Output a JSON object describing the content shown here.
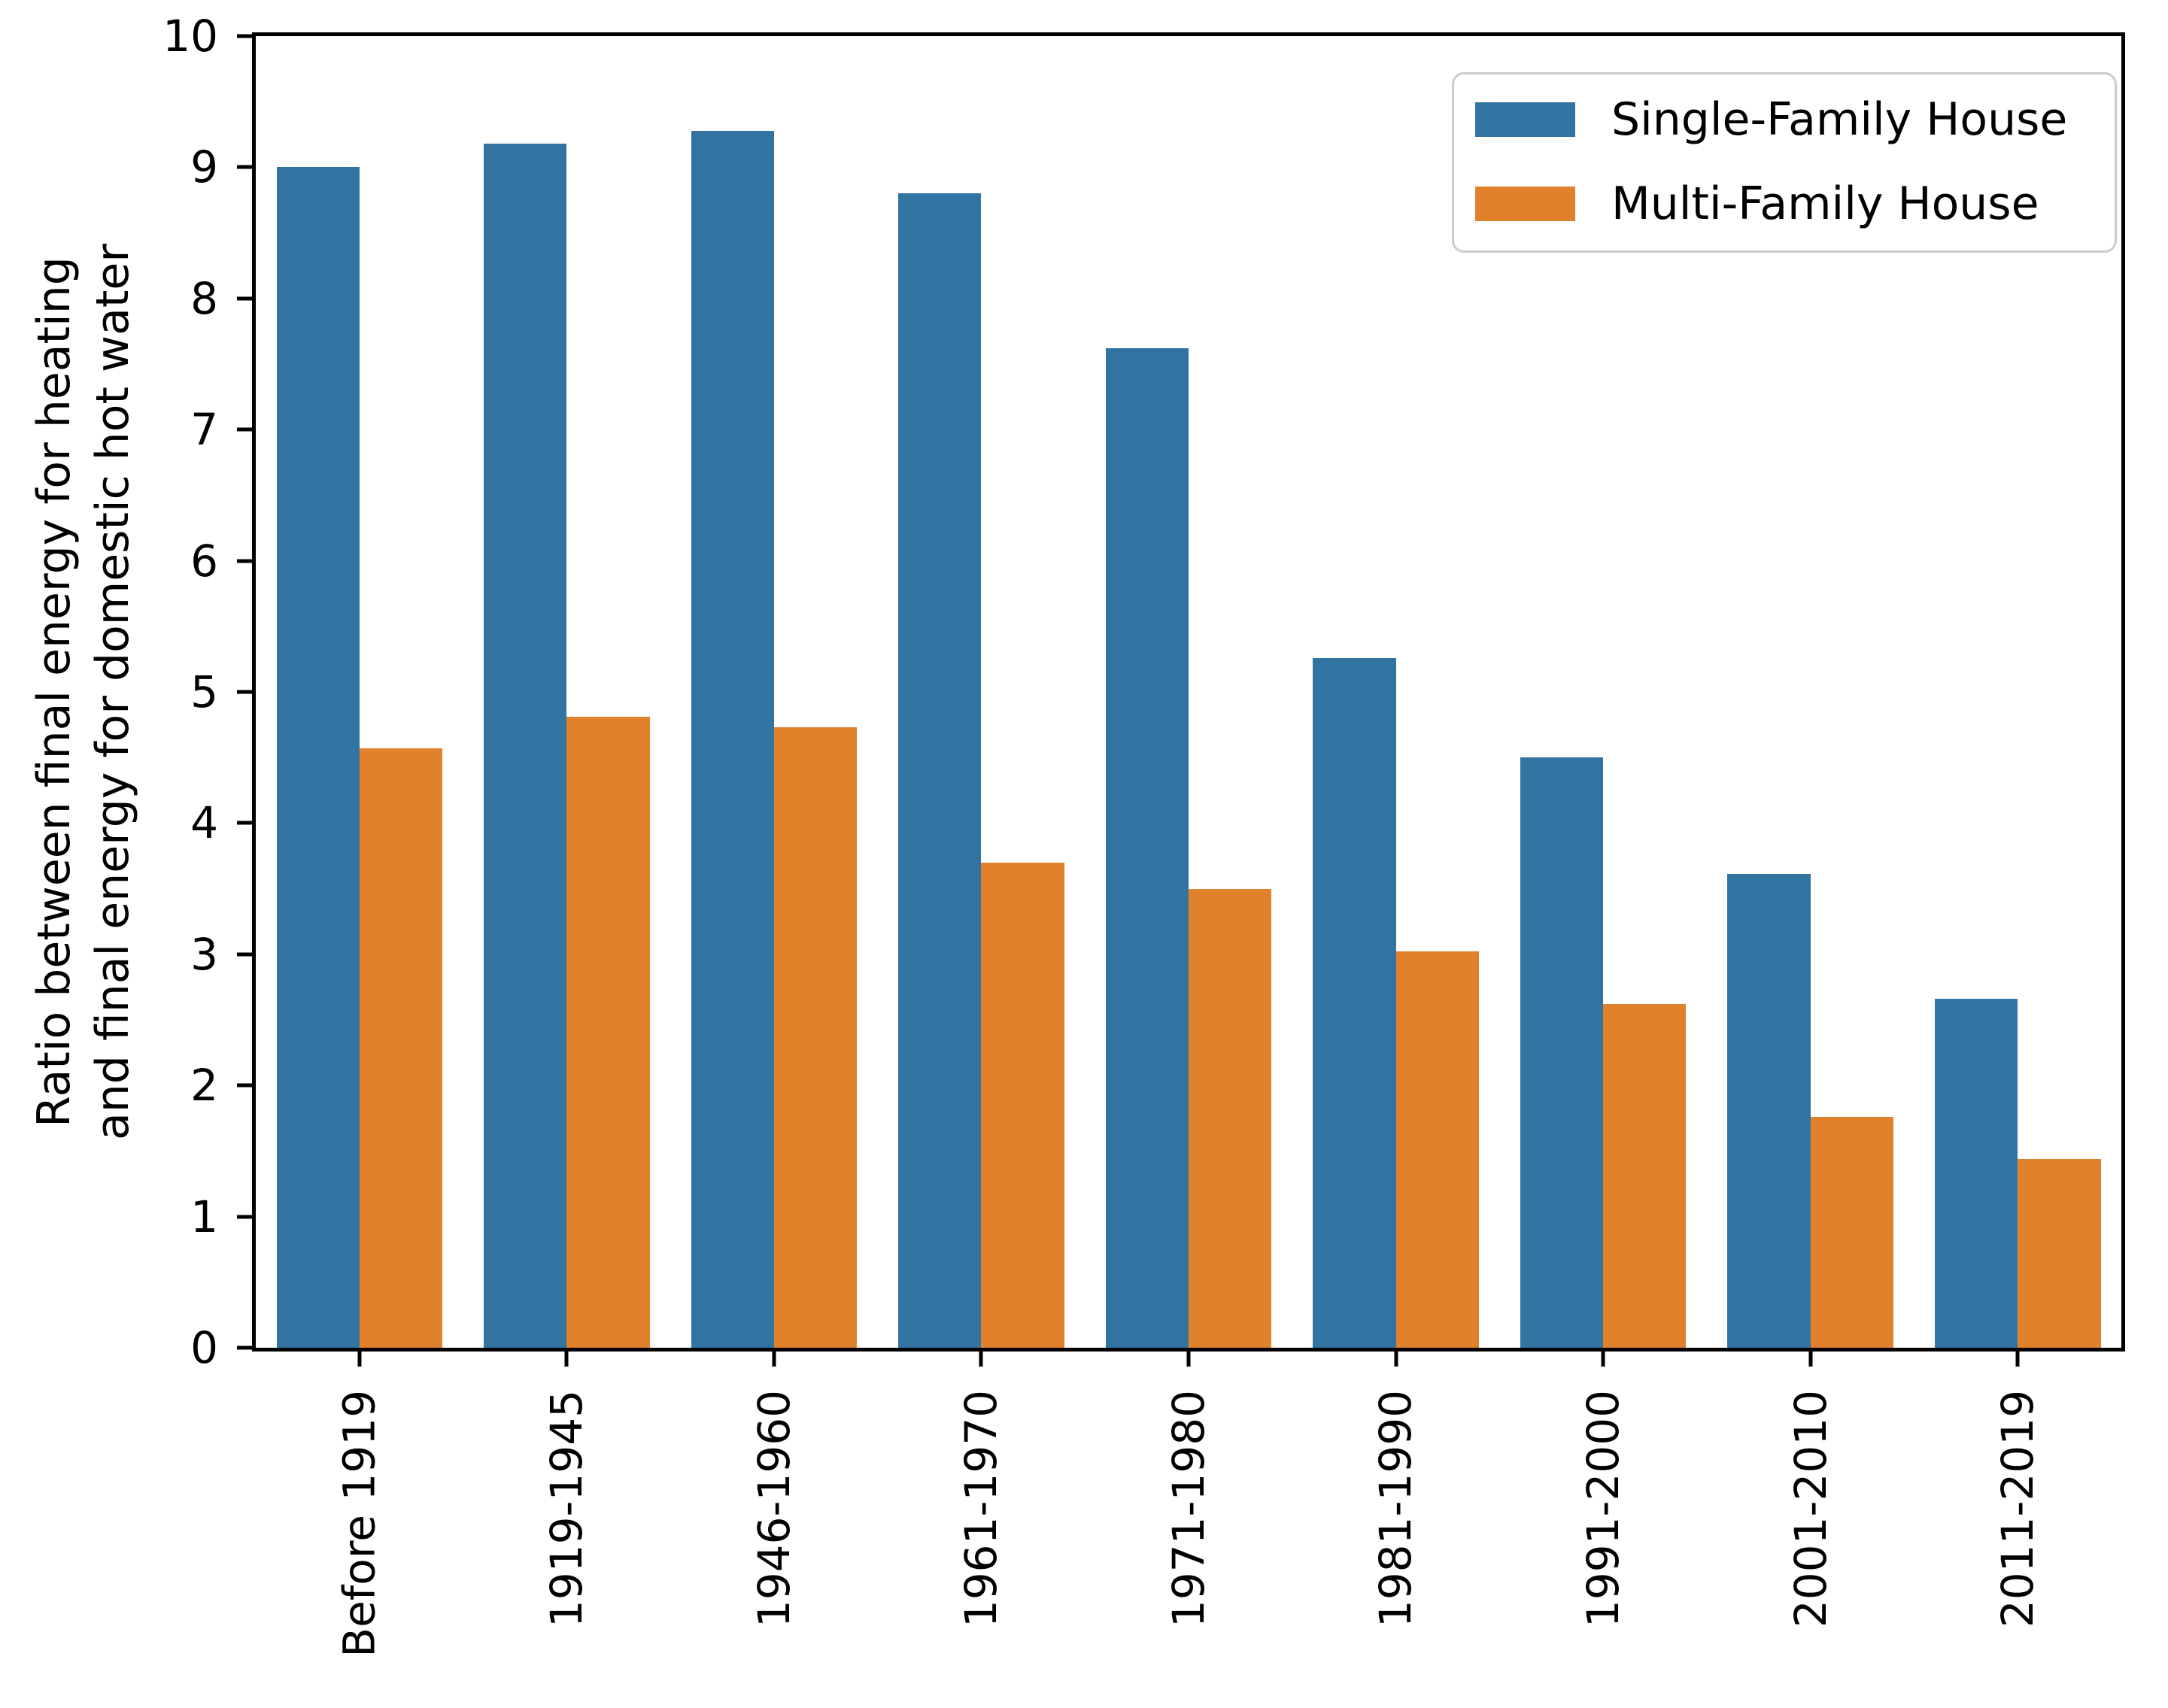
{
  "figure": {
    "background": "#ffffff",
    "text_color": "#000000",
    "spine_color": "#000000"
  },
  "ylabel": {
    "line1": "Ratio between final energy for heating",
    "line2": "and final energy for domestic hot water"
  },
  "legend": {
    "position": "upper right",
    "border_color": "#cccccc",
    "items": [
      {
        "label": "Single-Family House",
        "color": "#3274a1"
      },
      {
        "label": "Multi-Family House",
        "color": "#e1812c"
      }
    ]
  },
  "chart_data": {
    "type": "bar",
    "categories": [
      "Before 1919",
      "1919-1945",
      "1946-1960",
      "1961-1970",
      "1971-1980",
      "1981-1990",
      "1991-2000",
      "2001-2010",
      "2011-2019"
    ],
    "series": [
      {
        "name": "Single-Family House",
        "color": "#3274a1",
        "values": [
          9.0,
          9.18,
          9.28,
          8.8,
          7.62,
          5.26,
          4.5,
          3.61,
          2.66
        ]
      },
      {
        "name": "Multi-Family House",
        "color": "#e1812c",
        "values": [
          4.57,
          4.81,
          4.73,
          3.7,
          3.5,
          3.02,
          2.62,
          1.76,
          1.44
        ]
      }
    ],
    "title": "",
    "xlabel": "",
    "ylabel": "Ratio between final energy for heating\nand final energy for domestic hot water",
    "ylim": [
      0,
      10
    ],
    "yticks": [
      0,
      1,
      2,
      3,
      4,
      5,
      6,
      7,
      8,
      9,
      10
    ],
    "xtick_rotation": 90,
    "grid": false,
    "bar_group_width_fraction": 0.8,
    "legend_position": "upper right"
  }
}
